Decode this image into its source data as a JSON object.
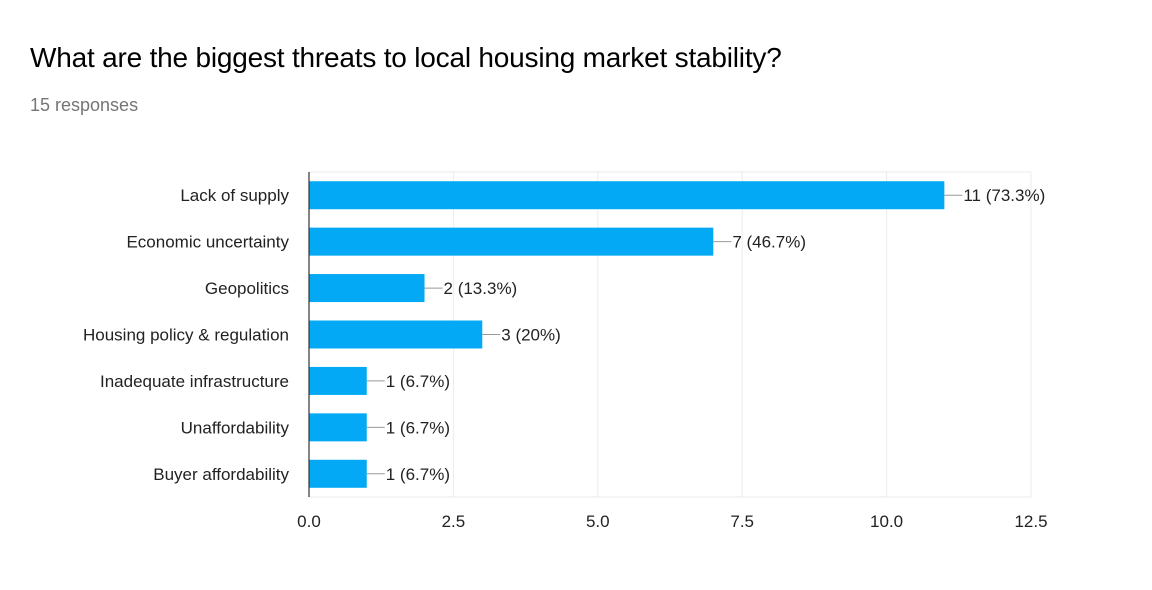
{
  "header": {
    "title": "What are the biggest threats to local housing market stability?",
    "responses": "15 responses"
  },
  "colors": {
    "bar": "#03a9f4",
    "grid": "#ebebeb",
    "axis": "#333333",
    "leader": "#999999"
  },
  "chart_data": {
    "type": "bar",
    "orientation": "horizontal",
    "title": "What are the biggest threats to local housing market stability?",
    "subtitle": "15 responses",
    "xlabel": "",
    "ylabel": "",
    "categories": [
      "Lack of supply",
      "Economic uncertainty",
      "Geopolitics",
      "Housing policy & regulation",
      "Inadequate infrastructure",
      "Unaffordability",
      "Buyer affordability"
    ],
    "values": [
      11,
      7,
      2,
      3,
      1,
      1,
      1
    ],
    "data_labels": [
      "11 (73.3%)",
      "7 (46.7%)",
      "2 (13.3%)",
      "3 (20%)",
      "1 (6.7%)",
      "1 (6.7%)",
      "1 (6.7%)"
    ],
    "xlim": [
      0,
      12.5
    ],
    "xticks": [
      0,
      2.5,
      5,
      7.5,
      10,
      12.5
    ],
    "xtick_labels": [
      "0.0",
      "2.5",
      "5.0",
      "7.5",
      "10.0",
      "12.5"
    ],
    "grid": true,
    "legend": "none"
  }
}
